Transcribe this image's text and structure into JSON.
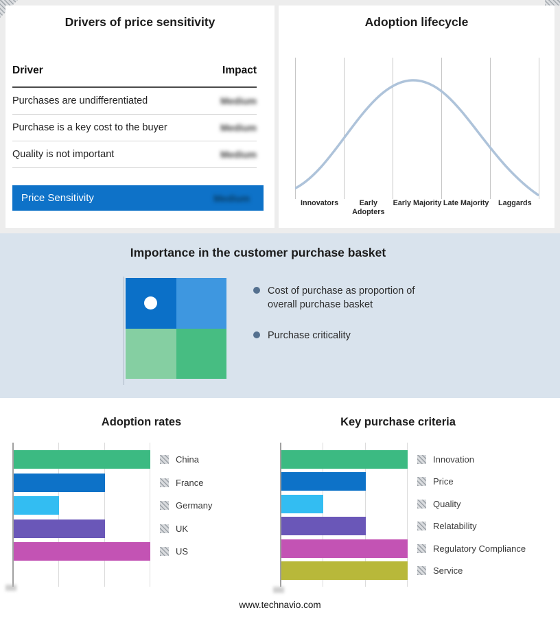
{
  "page": {
    "background": "#ffffff",
    "top_background": "#ededed",
    "band_background": "#d9e3ed"
  },
  "drivers_panel": {
    "title": "Drivers of price sensitivity",
    "columns": {
      "driver": "Driver",
      "impact": "Impact"
    },
    "rows": [
      {
        "driver": "Purchases are undifferentiated",
        "impact": "Medium",
        "impact_redacted": true
      },
      {
        "driver": "Purchase is a key cost to the buyer",
        "impact": "Medium",
        "impact_redacted": true
      },
      {
        "driver": "Quality is not important",
        "impact": "Medium",
        "impact_redacted": true
      }
    ],
    "summary_row": {
      "label": "Price Sensitivity",
      "impact": "Medium",
      "impact_redacted": true
    },
    "accent_color": "#0e72c8"
  },
  "basket_panel": {
    "title": "Importance in the customer purchase basket",
    "bullets": [
      "Cost of purchase as proportion of overall purchase basket",
      "Purchase criticality"
    ],
    "quadrant_colors": {
      "top_left": "#0b70c8",
      "top_right": "#3e97e0",
      "bottom_left": "#85cfa2",
      "bottom_right": "#47bd82"
    },
    "dot_color": "#ffffff",
    "bullet_marker_color": "#54708f"
  },
  "footer": {
    "url": "www.technavio.com"
  },
  "chart_data": [
    {
      "id": "adoption_lifecycle",
      "type": "line",
      "title": "Adoption lifecycle",
      "shape": "bell curve (diffusion of innovations)",
      "categories": [
        "Innovators",
        "Early Adopters",
        "Early Majority",
        "Late Majority",
        "Laggards"
      ],
      "relative_heights_at_stage_midpoints": [
        0.2,
        0.65,
        1.0,
        0.62,
        0.12
      ],
      "line_color": "#aec3da",
      "grid": "vertical stage separators only",
      "legend": "none"
    },
    {
      "id": "adoption_rates",
      "type": "bar",
      "orientation": "horizontal",
      "title": "Adoption rates",
      "categories": [
        "China",
        "France",
        "Germany",
        "UK",
        "US"
      ],
      "values": [
        3,
        2,
        1,
        2,
        3
      ],
      "xlim": [
        0,
        3
      ],
      "axis_note": "unlabeled axis; values estimated in gridline units",
      "colors": [
        "#3cba82",
        "#0d72c8",
        "#33bdf2",
        "#6a57b8",
        "#c353b4"
      ],
      "legend_position": "right",
      "grid": true
    },
    {
      "id": "key_purchase_criteria",
      "type": "bar",
      "orientation": "horizontal",
      "title": "Key purchase criteria",
      "categories": [
        "Innovation",
        "Price",
        "Quality",
        "Relatability",
        "Regulatory Compliance",
        "Service"
      ],
      "values": [
        3,
        2,
        1,
        2,
        3,
        3
      ],
      "xlim": [
        0,
        3
      ],
      "axis_note": "unlabeled axis; values estimated in gridline units",
      "colors": [
        "#3cba82",
        "#0d72c8",
        "#33bdf2",
        "#6a57b8",
        "#c353b4",
        "#b8b83a"
      ],
      "legend_position": "right",
      "grid": true
    }
  ]
}
